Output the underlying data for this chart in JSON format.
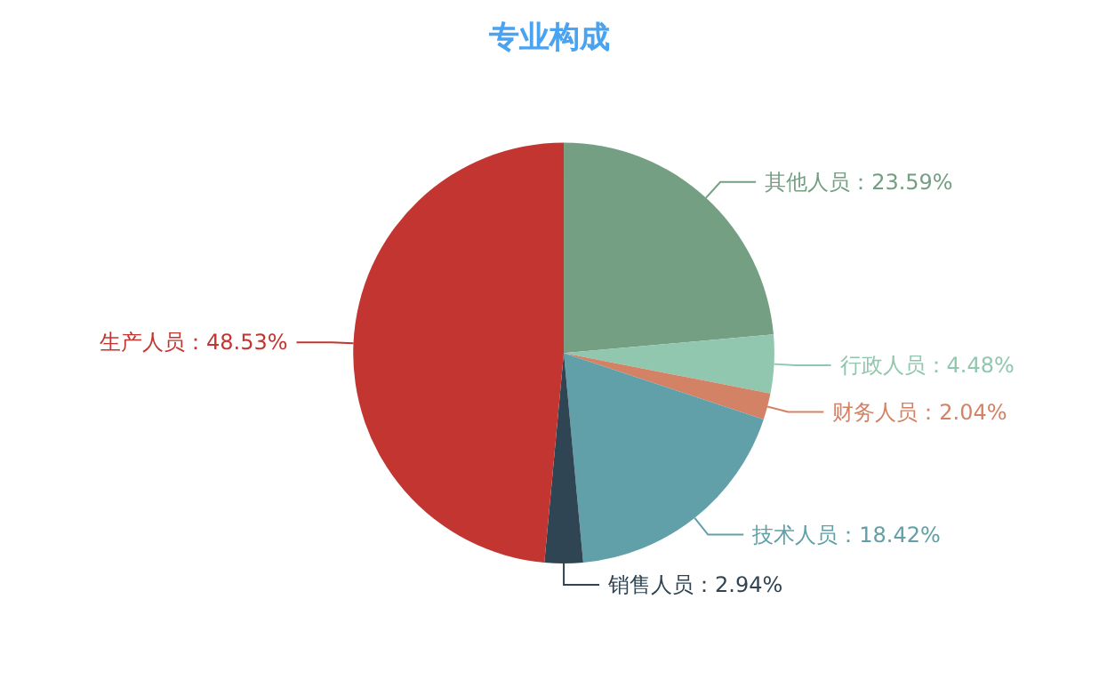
{
  "chart_data": {
    "type": "pie",
    "title": "专业构成",
    "categories": [
      "其他人员",
      "行政人员",
      "财务人员",
      "技术人员",
      "销售人员",
      "生产人员"
    ],
    "values": [
      23.59,
      4.48,
      2.04,
      18.42,
      2.94,
      48.53
    ],
    "value_labels": [
      "23.59%",
      "4.48%",
      "2.04%",
      "18.42%",
      "2.94%",
      "48.53%"
    ],
    "colors": [
      "#749f83",
      "#91c7ae",
      "#d48265",
      "#61a0a8",
      "#2f4554",
      "#c23531"
    ],
    "legend": false
  }
}
